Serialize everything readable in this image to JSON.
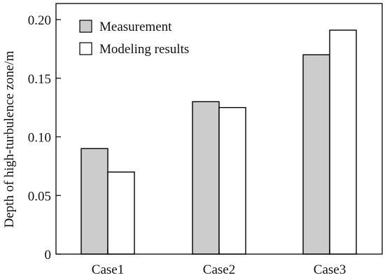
{
  "chart_data": {
    "type": "bar",
    "categories": [
      "Case1",
      "Case2",
      "Case3"
    ],
    "series": [
      {
        "name": "Measurement",
        "values": [
          0.09,
          0.13,
          0.17
        ],
        "color": "#cccccc"
      },
      {
        "name": "Modeling results",
        "values": [
          0.07,
          0.125,
          0.191
        ],
        "color": "#ffffff"
      }
    ],
    "title": "",
    "xlabel": "",
    "ylabel": "Depth of high-turbulence zone/m",
    "ylim": [
      0,
      0.21
    ],
    "yticks": [
      0,
      0.05,
      0.1,
      0.15,
      0.2
    ],
    "ytick_labels": [
      "0",
      "0.05",
      "0.10",
      "0.15",
      "0.20"
    ],
    "grid": false,
    "legend_position": "top-left",
    "bar_edge_color": "#000000"
  }
}
